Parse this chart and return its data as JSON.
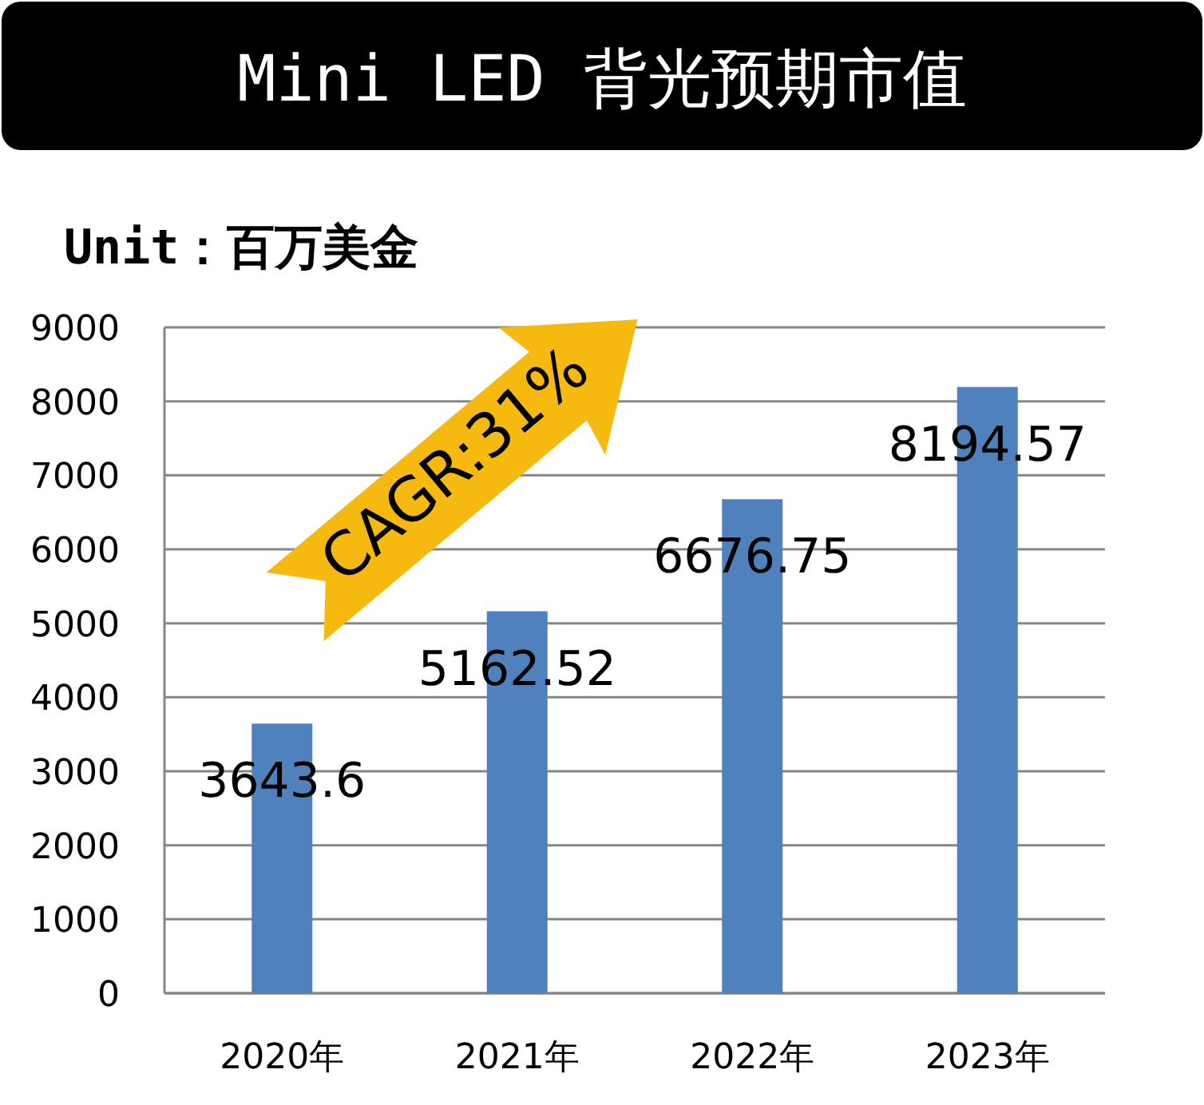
{
  "chart_data": {
    "type": "bar",
    "title": "Mini LED 背光预期市值",
    "subtitle": "Unit：百万美金",
    "categories": [
      "2020年",
      "2021年",
      "2022年",
      "2023年"
    ],
    "values": [
      3643.6,
      5162.52,
      6676.75,
      8194.57
    ],
    "color": "#4f81bd",
    "ylim": [
      0,
      9000
    ],
    "yticks": [
      0,
      1000,
      2000,
      3000,
      4000,
      5000,
      6000,
      7000,
      8000,
      9000
    ],
    "grid": "y",
    "data_labels": true,
    "annotations": [
      "CAGR:31%"
    ]
  }
}
